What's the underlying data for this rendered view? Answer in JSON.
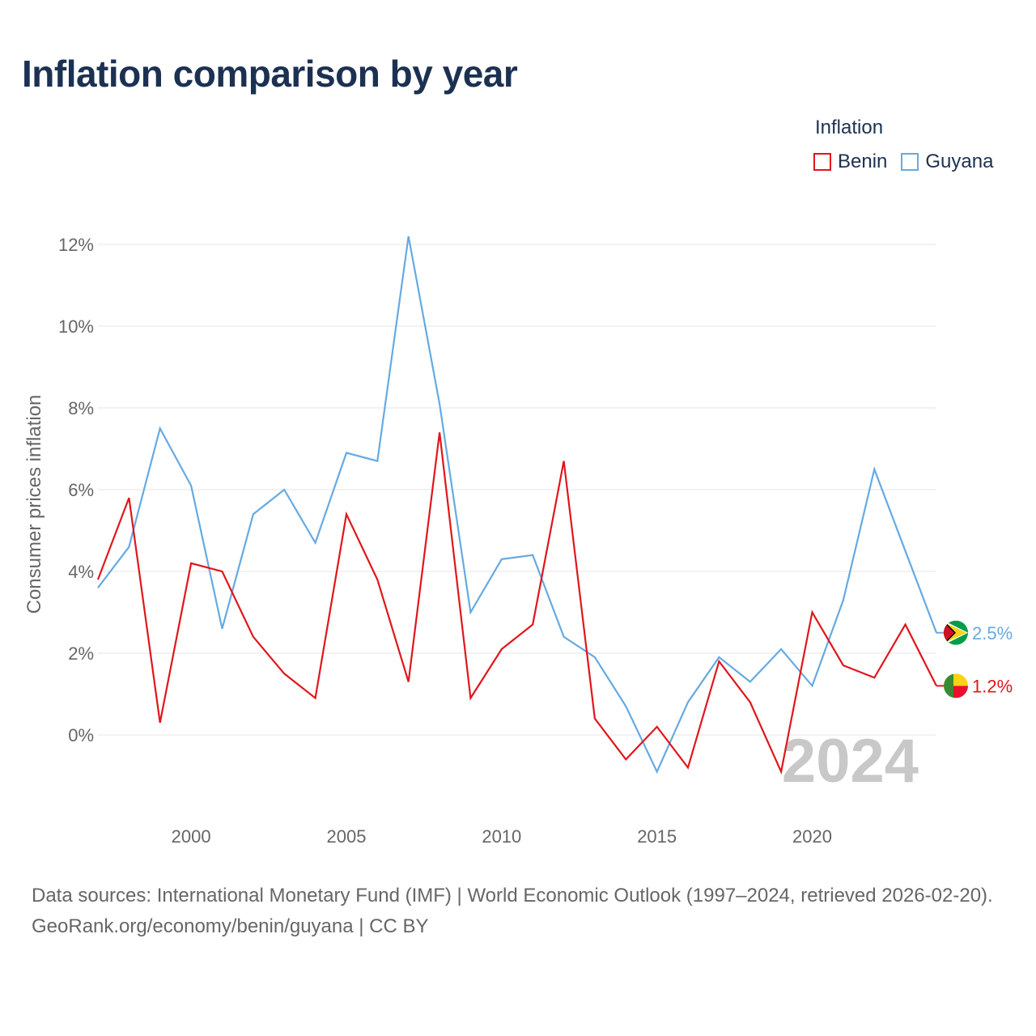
{
  "title": "Inflation comparison by year",
  "legend": {
    "title": "Inflation",
    "items": [
      {
        "label": "Benin",
        "color": "#e0161b"
      },
      {
        "label": "Guyana",
        "color": "#66aae2"
      }
    ]
  },
  "chart_data": {
    "type": "line",
    "ylabel": "Consumer prices inflation",
    "xlabel": "",
    "x": [
      1997,
      1998,
      1999,
      2000,
      2001,
      2002,
      2003,
      2004,
      2005,
      2006,
      2007,
      2008,
      2009,
      2010,
      2011,
      2012,
      2013,
      2014,
      2015,
      2016,
      2017,
      2018,
      2019,
      2020,
      2021,
      2022,
      2023,
      2024
    ],
    "xlim": [
      1997,
      2024
    ],
    "ylim": [
      -2,
      13
    ],
    "xticks": [
      2000,
      2005,
      2010,
      2015,
      2020
    ],
    "yticks": [
      0,
      2,
      4,
      6,
      8,
      10,
      12
    ],
    "ytick_labels": [
      "0%",
      "2%",
      "4%",
      "6%",
      "8%",
      "10%",
      "12%"
    ],
    "grid": true,
    "watermark_year": "2024",
    "series": [
      {
        "name": "Benin",
        "color": "#e0161b",
        "end_label": "1.2%",
        "values": [
          3.8,
          5.8,
          0.3,
          4.2,
          4.0,
          2.4,
          1.5,
          0.9,
          5.4,
          3.8,
          1.3,
          7.4,
          0.9,
          2.1,
          2.7,
          6.7,
          0.4,
          -0.6,
          0.2,
          -0.8,
          1.8,
          0.8,
          -0.9,
          3.0,
          1.7,
          1.4,
          2.7,
          1.2
        ]
      },
      {
        "name": "Guyana",
        "color": "#66aae2",
        "end_label": "2.5%",
        "values": [
          3.6,
          4.6,
          7.5,
          6.1,
          2.6,
          5.4,
          6.0,
          4.7,
          6.9,
          6.7,
          12.2,
          8.1,
          3.0,
          4.3,
          4.4,
          2.4,
          1.9,
          0.7,
          -0.9,
          0.8,
          1.9,
          1.3,
          2.1,
          1.2,
          3.3,
          6.5,
          4.5,
          2.5
        ]
      }
    ]
  },
  "footer": {
    "source": "Data sources: International Monetary Fund (IMF) | World Economic Outlook (1997–2024, retrieved 2026-02-20).",
    "credit": "GeoRank.org/economy/benin/guyana | CC BY"
  }
}
